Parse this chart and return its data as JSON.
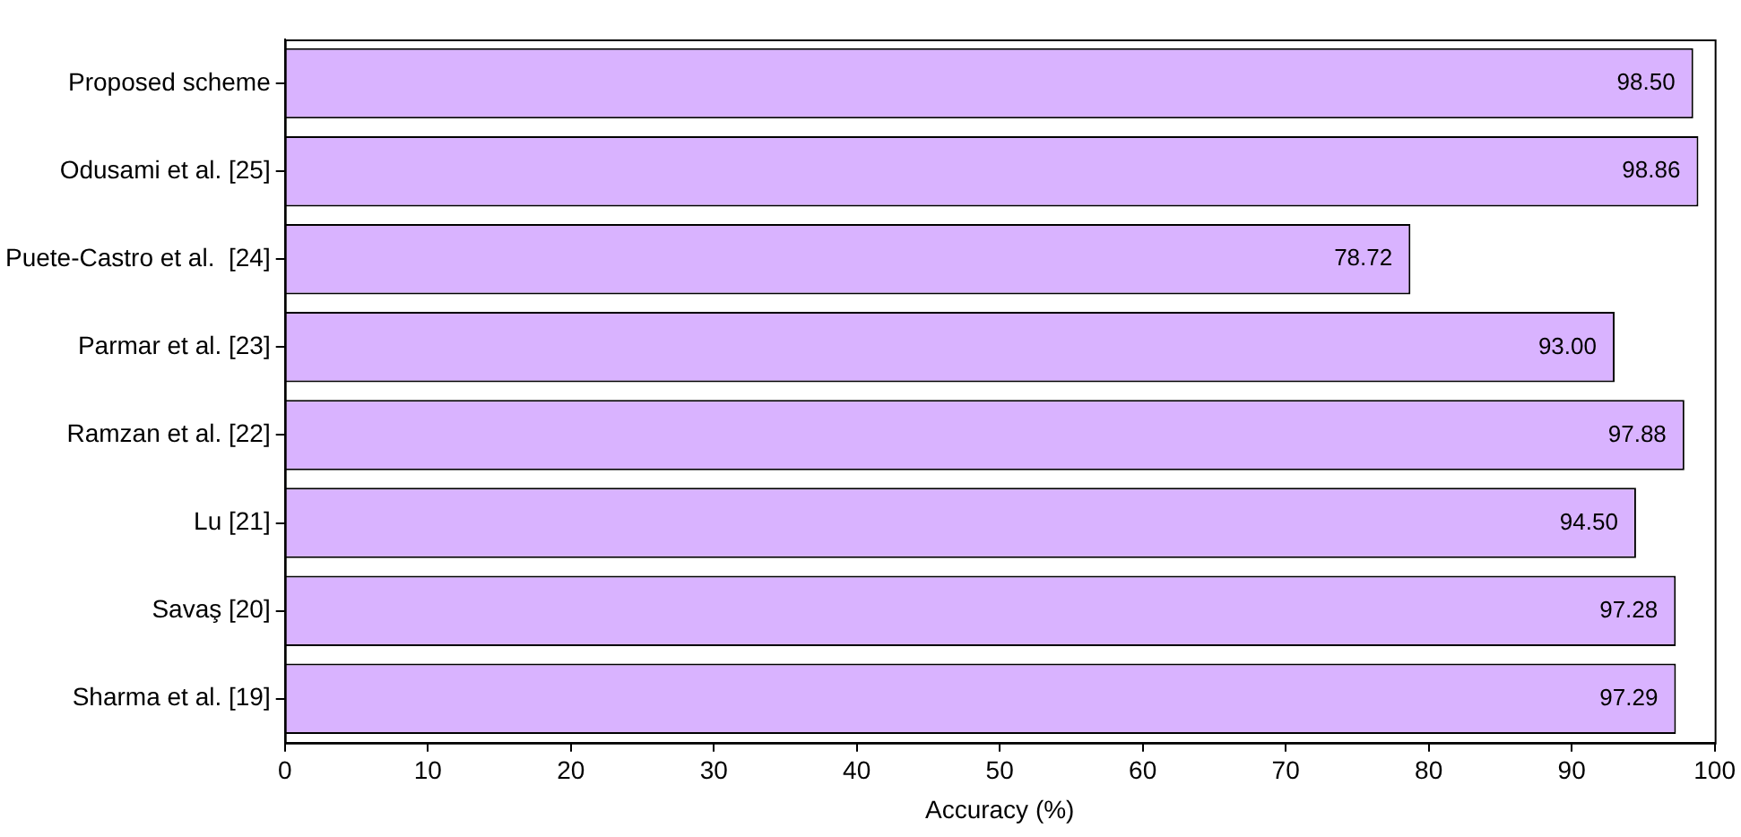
{
  "chart_data": {
    "type": "bar",
    "orientation": "horizontal",
    "xlabel": "Accuracy (%)",
    "categories": [
      "Proposed scheme",
      "Odusami et al. [25]",
      "Puete-Castro et al.  [24]",
      "Parmar et al. [23]",
      "Ramzan et al. [22]",
      "Lu [21]",
      "Savaş [20]",
      "Sharma et al. [19]"
    ],
    "values": [
      98.5,
      98.86,
      78.72,
      93.0,
      97.88,
      94.5,
      97.28,
      97.29
    ],
    "value_labels": [
      "98.50",
      "98.86",
      "78.72",
      "93.00",
      "97.88",
      "94.50",
      "97.28",
      "97.29"
    ],
    "color": "#d9b3ff",
    "xlim": [
      0,
      100
    ],
    "xticks": [
      0,
      10,
      20,
      30,
      40,
      50,
      60,
      70,
      80,
      90,
      100
    ],
    "grid": false,
    "legend": false
  }
}
